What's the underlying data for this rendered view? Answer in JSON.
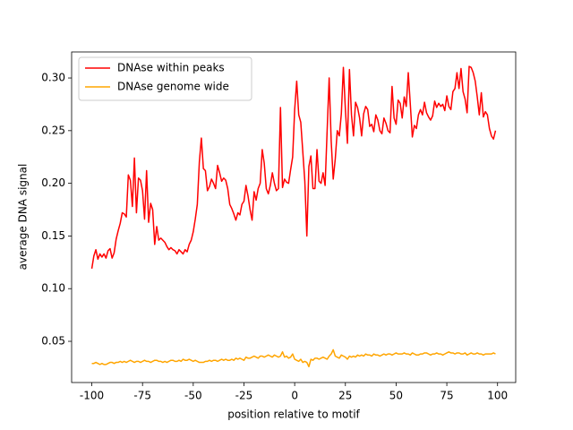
{
  "chart_data": {
    "type": "line",
    "xlabel": "position relative to motif",
    "ylabel": "average DNA signal",
    "x": [
      -100,
      -99,
      -98,
      -97,
      -96,
      -95,
      -94,
      -93,
      -92,
      -91,
      -90,
      -89,
      -88,
      -87,
      -86,
      -85,
      -84,
      -83,
      -82,
      -81,
      -80,
      -79,
      -78,
      -77,
      -76,
      -75,
      -74,
      -73,
      -72,
      -71,
      -70,
      -69,
      -68,
      -67,
      -66,
      -65,
      -64,
      -63,
      -62,
      -61,
      -60,
      -59,
      -58,
      -57,
      -56,
      -55,
      -54,
      -53,
      -52,
      -51,
      -50,
      -49,
      -48,
      -47,
      -46,
      -45,
      -44,
      -43,
      -42,
      -41,
      -40,
      -39,
      -38,
      -37,
      -36,
      -35,
      -34,
      -33,
      -32,
      -31,
      -30,
      -29,
      -28,
      -27,
      -26,
      -25,
      -24,
      -23,
      -22,
      -21,
      -20,
      -19,
      -18,
      -17,
      -16,
      -15,
      -14,
      -13,
      -12,
      -11,
      -10,
      -9,
      -8,
      -7,
      -6,
      -5,
      -4,
      -3,
      -2,
      -1,
      0,
      1,
      2,
      3,
      4,
      5,
      6,
      7,
      8,
      9,
      10,
      11,
      12,
      13,
      14,
      15,
      16,
      17,
      18,
      19,
      20,
      21,
      22,
      23,
      24,
      25,
      26,
      27,
      28,
      29,
      30,
      31,
      32,
      33,
      34,
      35,
      36,
      37,
      38,
      39,
      40,
      41,
      42,
      43,
      44,
      45,
      46,
      47,
      48,
      49,
      50,
      51,
      52,
      53,
      54,
      55,
      56,
      57,
      58,
      59,
      60,
      61,
      62,
      63,
      64,
      65,
      66,
      67,
      68,
      69,
      70,
      71,
      72,
      73,
      74,
      75,
      76,
      77,
      78,
      79,
      80,
      81,
      82,
      83,
      84,
      85,
      86,
      87,
      88,
      89,
      90,
      91,
      92,
      93,
      94,
      95,
      96,
      97,
      98,
      99
    ],
    "series": [
      {
        "name": "DNAse within peaks",
        "color": "#ff0000",
        "values": [
          0.119,
          0.131,
          0.137,
          0.128,
          0.133,
          0.13,
          0.133,
          0.129,
          0.136,
          0.138,
          0.129,
          0.134,
          0.147,
          0.155,
          0.162,
          0.172,
          0.171,
          0.168,
          0.208,
          0.203,
          0.178,
          0.224,
          0.172,
          0.205,
          0.203,
          0.193,
          0.166,
          0.212,
          0.163,
          0.181,
          0.175,
          0.142,
          0.159,
          0.146,
          0.148,
          0.146,
          0.144,
          0.14,
          0.137,
          0.139,
          0.137,
          0.136,
          0.133,
          0.137,
          0.135,
          0.133,
          0.137,
          0.135,
          0.142,
          0.146,
          0.154,
          0.166,
          0.18,
          0.22,
          0.243,
          0.214,
          0.212,
          0.193,
          0.197,
          0.204,
          0.2,
          0.195,
          0.217,
          0.21,
          0.202,
          0.205,
          0.203,
          0.195,
          0.18,
          0.176,
          0.171,
          0.165,
          0.172,
          0.17,
          0.18,
          0.183,
          0.198,
          0.188,
          0.175,
          0.165,
          0.192,
          0.184,
          0.195,
          0.2,
          0.232,
          0.219,
          0.195,
          0.19,
          0.198,
          0.21,
          0.2,
          0.193,
          0.195,
          0.272,
          0.196,
          0.204,
          0.201,
          0.2,
          0.213,
          0.225,
          0.27,
          0.297,
          0.265,
          0.258,
          0.23,
          0.202,
          0.15,
          0.216,
          0.226,
          0.195,
          0.195,
          0.232,
          0.202,
          0.2,
          0.21,
          0.198,
          0.25,
          0.3,
          0.24,
          0.204,
          0.223,
          0.25,
          0.245,
          0.266,
          0.31,
          0.27,
          0.238,
          0.308,
          0.265,
          0.245,
          0.277,
          0.272,
          0.262,
          0.245,
          0.266,
          0.273,
          0.27,
          0.254,
          0.256,
          0.249,
          0.265,
          0.26,
          0.25,
          0.247,
          0.262,
          0.257,
          0.25,
          0.248,
          0.292,
          0.262,
          0.256,
          0.279,
          0.276,
          0.262,
          0.282,
          0.273,
          0.305,
          0.275,
          0.244,
          0.255,
          0.252,
          0.265,
          0.27,
          0.265,
          0.277,
          0.267,
          0.263,
          0.26,
          0.264,
          0.278,
          0.272,
          0.276,
          0.273,
          0.275,
          0.269,
          0.283,
          0.273,
          0.27,
          0.287,
          0.29,
          0.305,
          0.29,
          0.309,
          0.287,
          0.28,
          0.267,
          0.311,
          0.31,
          0.305,
          0.297,
          0.282,
          0.265,
          0.286,
          0.263,
          0.268,
          0.265,
          0.252,
          0.245,
          0.242,
          0.25
        ]
      },
      {
        "name": "DNAse genome wide",
        "color": "#ffa500",
        "values": [
          0.029,
          0.029,
          0.03,
          0.029,
          0.028,
          0.029,
          0.028,
          0.028,
          0.029,
          0.03,
          0.03,
          0.029,
          0.03,
          0.03,
          0.031,
          0.03,
          0.031,
          0.03,
          0.031,
          0.032,
          0.031,
          0.03,
          0.031,
          0.031,
          0.03,
          0.031,
          0.032,
          0.031,
          0.031,
          0.03,
          0.031,
          0.032,
          0.032,
          0.031,
          0.031,
          0.03,
          0.031,
          0.03,
          0.031,
          0.032,
          0.032,
          0.031,
          0.031,
          0.032,
          0.031,
          0.033,
          0.032,
          0.032,
          0.033,
          0.032,
          0.031,
          0.032,
          0.031,
          0.03,
          0.03,
          0.03,
          0.031,
          0.031,
          0.032,
          0.031,
          0.032,
          0.032,
          0.031,
          0.032,
          0.033,
          0.032,
          0.033,
          0.032,
          0.032,
          0.033,
          0.032,
          0.034,
          0.033,
          0.034,
          0.033,
          0.032,
          0.035,
          0.034,
          0.034,
          0.035,
          0.036,
          0.035,
          0.034,
          0.036,
          0.036,
          0.035,
          0.036,
          0.037,
          0.036,
          0.035,
          0.037,
          0.036,
          0.035,
          0.036,
          0.04,
          0.035,
          0.036,
          0.034,
          0.035,
          0.038,
          0.033,
          0.032,
          0.031,
          0.033,
          0.03,
          0.031,
          0.03,
          0.026,
          0.033,
          0.032,
          0.034,
          0.034,
          0.033,
          0.034,
          0.035,
          0.034,
          0.033,
          0.036,
          0.038,
          0.042,
          0.036,
          0.035,
          0.034,
          0.037,
          0.036,
          0.035,
          0.033,
          0.036,
          0.035,
          0.036,
          0.035,
          0.037,
          0.036,
          0.037,
          0.036,
          0.038,
          0.037,
          0.037,
          0.036,
          0.038,
          0.037,
          0.037,
          0.036,
          0.037,
          0.038,
          0.037,
          0.038,
          0.038,
          0.037,
          0.038,
          0.039,
          0.038,
          0.038,
          0.038,
          0.039,
          0.038,
          0.038,
          0.037,
          0.039,
          0.038,
          0.037,
          0.037,
          0.038,
          0.038,
          0.039,
          0.039,
          0.038,
          0.037,
          0.038,
          0.038,
          0.039,
          0.038,
          0.038,
          0.037,
          0.038,
          0.039,
          0.04,
          0.039,
          0.039,
          0.038,
          0.039,
          0.039,
          0.038,
          0.038,
          0.039,
          0.037,
          0.038,
          0.039,
          0.038,
          0.038,
          0.039,
          0.038,
          0.038,
          0.037,
          0.038,
          0.038,
          0.038,
          0.038,
          0.039,
          0.038
        ]
      }
    ],
    "xlim": [
      -109.95,
      108.95
    ],
    "ylim": [
      0.0109,
      0.3247
    ],
    "xticks": [
      -100,
      -75,
      -50,
      -25,
      0,
      25,
      50,
      75,
      100
    ],
    "yticks": [
      0.05,
      {
        "value": 0.1,
        "label": "0.10"
      },
      0.15,
      {
        "value": 0.2,
        "label": "0.20"
      },
      0.25,
      {
        "value": 0.3,
        "label": "0.30"
      }
    ],
    "legend": "upper left"
  }
}
